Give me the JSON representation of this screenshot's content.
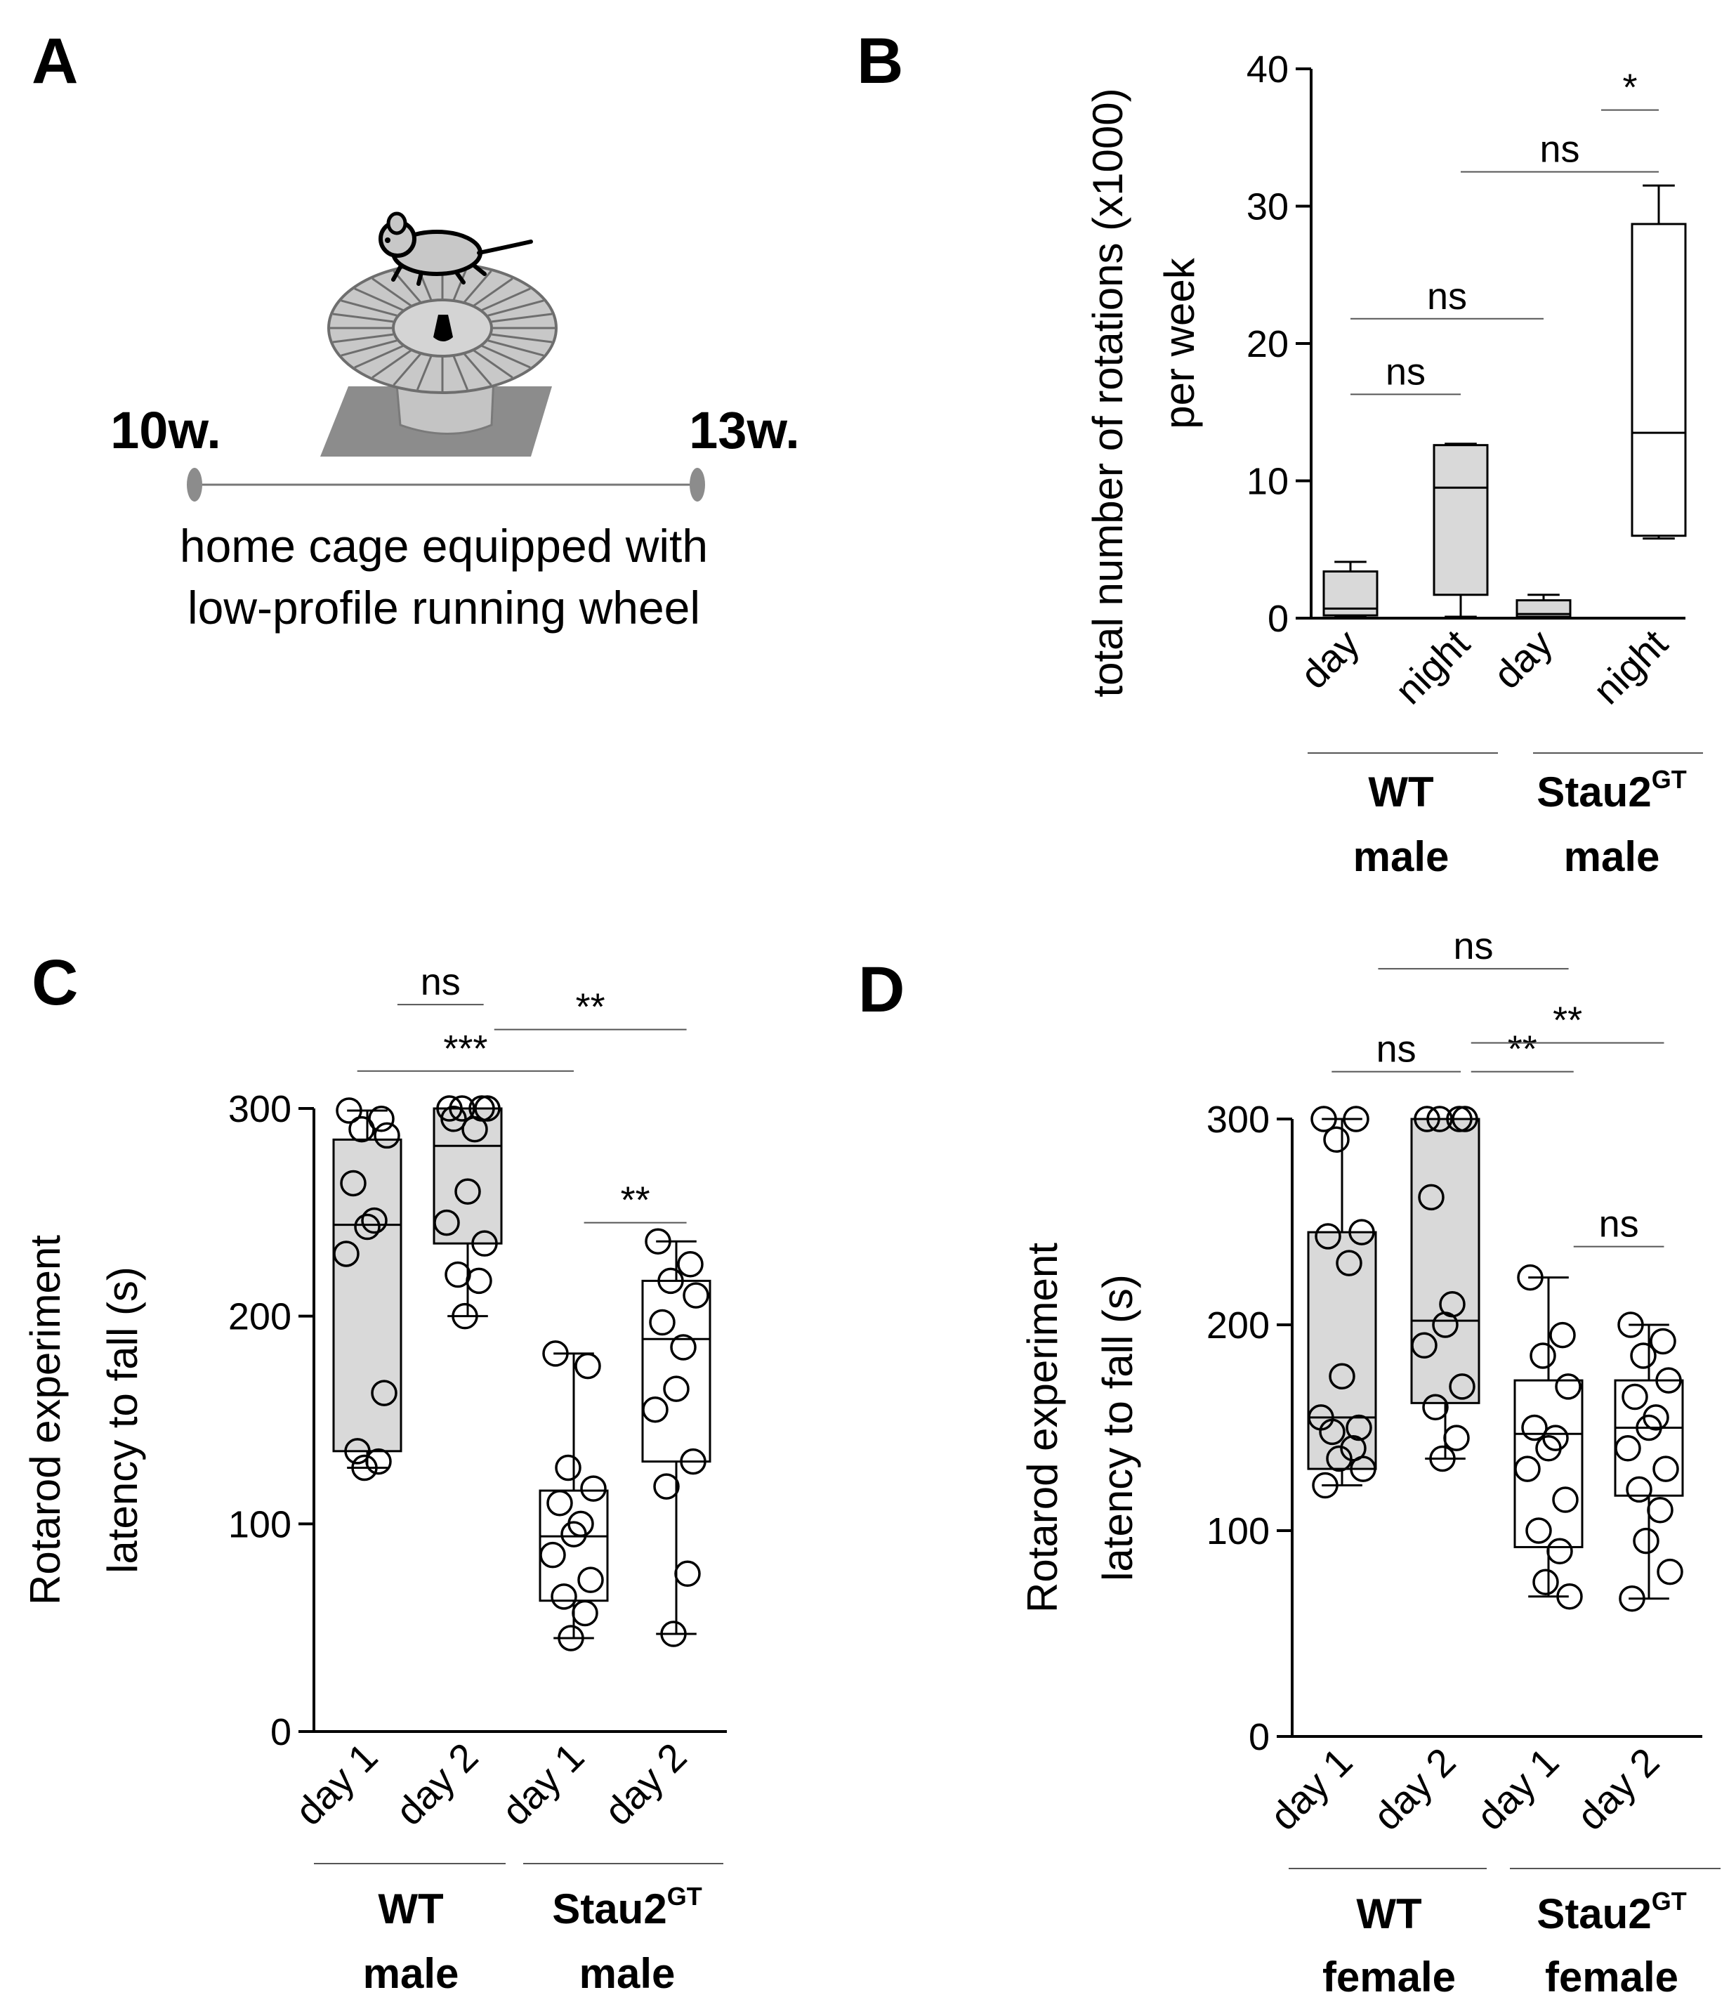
{
  "panels": {
    "A": {
      "letter": "A",
      "start_label": "10w.",
      "end_label": "13w.",
      "caption_line1": "home cage equipped with",
      "caption_line2": "low-profile running wheel",
      "icons": [
        "mouse-icon",
        "running-wheel-icon"
      ]
    },
    "B": {
      "letter": "B"
    },
    "C": {
      "letter": "C"
    },
    "D": {
      "letter": "D"
    }
  },
  "chart_data": [
    {
      "id": "B",
      "type": "box",
      "ylabel_line1": "total number of rotations (x1000)",
      "ylabel_line2": "per week",
      "ylim": [
        0,
        40
      ],
      "yticks": [
        0,
        10,
        20,
        30,
        40
      ],
      "categories": [
        "day",
        "night",
        "day",
        "night"
      ],
      "groups": [
        {
          "line1": "WT",
          "line2": "male",
          "superscript": ""
        },
        {
          "line1": "Stau2",
          "line2": "male",
          "superscript": "GT"
        }
      ],
      "fills": [
        "#d9d9d9",
        "#d9d9d9",
        "#d9d9d9",
        "#ffffff"
      ],
      "boxes": [
        {
          "min": 0.1,
          "q1": 0.2,
          "median": 0.7,
          "q3": 3.4,
          "max": 4.1
        },
        {
          "min": 0.1,
          "q1": 1.7,
          "median": 9.5,
          "q3": 12.6,
          "max": 12.7
        },
        {
          "min": 0.1,
          "q1": 0.1,
          "median": 0.3,
          "q3": 1.3,
          "max": 1.7
        },
        {
          "min": 5.8,
          "q1": 6.0,
          "median": 13.5,
          "q3": 28.7,
          "max": 31.5
        }
      ],
      "points": [],
      "significance": [
        {
          "label": "ns",
          "from": 0,
          "to": 1,
          "y": 16.3
        },
        {
          "label": "ns",
          "from": 0,
          "to": 2,
          "y": 21.8
        },
        {
          "label": "ns",
          "from": 1,
          "to": 3,
          "y": 32.5
        },
        {
          "label": "*",
          "from": 2.5,
          "to": 3,
          "y": 37.0
        }
      ]
    },
    {
      "id": "C",
      "type": "box",
      "ylabel_line1": "Rotarod experiment",
      "ylabel_line2": "latency to fall (s)",
      "ylim": [
        0,
        300
      ],
      "yticks": [
        0,
        100,
        200,
        300
      ],
      "categories": [
        "day 1",
        "day 2",
        "day 1",
        "day 2"
      ],
      "groups": [
        {
          "line1": "WT",
          "line2": "male",
          "superscript": ""
        },
        {
          "line1": "Stau2",
          "line2": "male",
          "superscript": "GT"
        }
      ],
      "fills": [
        "#d9d9d9",
        "#d9d9d9",
        "#ffffff",
        "#ffffff"
      ],
      "boxes": [
        {
          "min": 127,
          "q1": 135,
          "median": 244,
          "q3": 285,
          "max": 299
        },
        {
          "min": 200,
          "q1": 235,
          "median": 282,
          "q3": 300,
          "max": 300
        },
        {
          "min": 45,
          "q1": 63,
          "median": 94,
          "q3": 116,
          "max": 182
        },
        {
          "min": 47,
          "q1": 130,
          "median": 189,
          "q3": 217,
          "max": 236
        }
      ],
      "points": [
        [
          299,
          295,
          290,
          287,
          264,
          246,
          243,
          230,
          163,
          135,
          130,
          127
        ],
        [
          300,
          300,
          300,
          300,
          295,
          290,
          260,
          245,
          235,
          220,
          217,
          200
        ],
        [
          182,
          176,
          127,
          117,
          110,
          100,
          95,
          85,
          73,
          65,
          57,
          45
        ],
        [
          236,
          225,
          217,
          210,
          197,
          185,
          165,
          155,
          130,
          118,
          76,
          47
        ]
      ],
      "significance": [
        {
          "label": "ns",
          "from": 0.3,
          "to": 1.15,
          "y": 350
        },
        {
          "label": "***",
          "from": -0.1,
          "to": 2,
          "y": 318
        },
        {
          "label": "**",
          "from": 1.25,
          "to": 3.1,
          "y": 338
        },
        {
          "label": "**",
          "from": 2.1,
          "to": 3.1,
          "y": 245
        }
      ]
    },
    {
      "id": "D",
      "type": "box",
      "ylabel_line1": "Rotarod experiment",
      "ylabel_line2": "latency to fall (s)",
      "ylim": [
        0,
        300
      ],
      "yticks": [
        0,
        100,
        200,
        300
      ],
      "categories": [
        "day 1",
        "day 2",
        "day 1",
        "day 2"
      ],
      "groups": [
        {
          "line1": "WT",
          "line2": "female",
          "superscript": ""
        },
        {
          "line1": "Stau2",
          "line2": "female",
          "superscript": "GT"
        }
      ],
      "fills": [
        "#d9d9d9",
        "#d9d9d9",
        "#ffffff",
        "#ffffff"
      ],
      "boxes": [
        {
          "min": 122,
          "q1": 130,
          "median": 155,
          "q3": 245,
          "max": 300
        },
        {
          "min": 135,
          "q1": 162,
          "median": 202,
          "q3": 300,
          "max": 300
        },
        {
          "min": 68,
          "q1": 92,
          "median": 147,
          "q3": 173,
          "max": 223
        },
        {
          "min": 67,
          "q1": 117,
          "median": 150,
          "q3": 173,
          "max": 200
        }
      ],
      "points": [
        [
          300,
          300,
          290,
          245,
          243,
          230,
          175,
          155,
          150,
          148,
          140,
          135,
          130,
          122
        ],
        [
          300,
          300,
          300,
          300,
          262,
          210,
          200,
          190,
          170,
          160,
          145,
          135
        ],
        [
          223,
          195,
          185,
          170,
          150,
          145,
          140,
          130,
          115,
          100,
          90,
          75,
          68
        ],
        [
          200,
          192,
          185,
          173,
          165,
          155,
          150,
          140,
          130,
          120,
          110,
          95,
          80,
          67
        ]
      ],
      "significance": [
        {
          "label": "ns",
          "from": 0.35,
          "to": 2.2,
          "y": 373
        },
        {
          "label": "ns",
          "from": -0.1,
          "to": 1.15,
          "y": 323
        },
        {
          "label": "**",
          "from": 1.25,
          "to": 2.25,
          "y": 323
        },
        {
          "label": "**",
          "from": 1.25,
          "to": 3.15,
          "y": 337
        },
        {
          "label": "ns",
          "from": 2.25,
          "to": 3.15,
          "y": 238
        }
      ]
    }
  ]
}
